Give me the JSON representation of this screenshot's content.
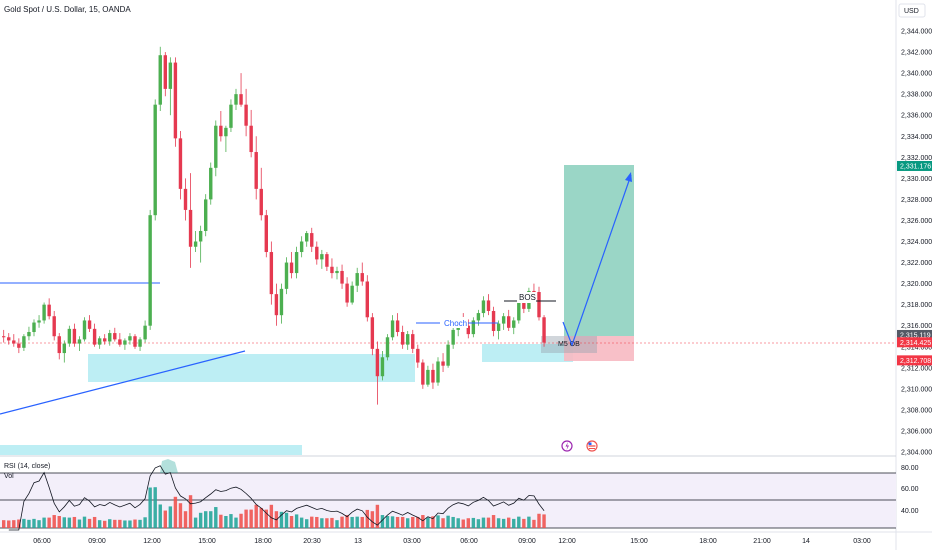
{
  "header": {
    "title": "Gold Spot / U.S. Dollar, 15, OANDA",
    "currency": "USD"
  },
  "colors": {
    "up": "#26a69a",
    "down": "#ef5350",
    "bull_candle": "#4caf50",
    "bear_candle": "#e53950",
    "zone": "#b2ebf2",
    "target": "#8fd2c0",
    "stop": "#f7b9c2",
    "line": "#2962ff",
    "rsi_band": "#f3effa",
    "grid": "#f0f3fa"
  },
  "price_axis": {
    "min": 2304,
    "max": 2345,
    "ticks": [
      "2,344.000",
      "2,342.000",
      "2,340.000",
      "2,338.000",
      "2,336.000",
      "2,334.000",
      "2,332.000",
      "2,330.000",
      "2,328.000",
      "2,326.000",
      "2,324.000",
      "2,322.000",
      "2,320.000",
      "2,318.000",
      "2,316.000",
      "2,314.000",
      "2,312.000",
      "2,310.000",
      "2,308.000",
      "2,306.000",
      "2,304.000"
    ]
  },
  "tags": [
    {
      "text": "2,331.176",
      "value": 2331.176,
      "color": "#089981"
    },
    {
      "text": "2,315.119",
      "value": 2315.119,
      "color": "#555a66"
    },
    {
      "text": "2,314.425",
      "value": 2314.425,
      "color": "#f23645"
    },
    {
      "text": "2,312.708",
      "value": 2312.708,
      "color": "#f23645"
    }
  ],
  "time_axis": [
    "06:00",
    "09:00",
    "12:00",
    "15:00",
    "18:00",
    "20:30",
    "13",
    "03:00",
    "06:00",
    "09:00",
    "12:00",
    "15:00",
    "18:00",
    "21:00",
    "14",
    "03:00"
  ],
  "annotations": {
    "choch": "Choch",
    "bos": "BOS",
    "ob": "M5 OB"
  },
  "rsi": {
    "label": "RSI (14, close)",
    "vol_label": "Vol",
    "ticks": [
      "80.00",
      "60.00",
      "40.00"
    ]
  },
  "chart_data": {
    "type": "candlestick",
    "title": "Gold Spot / U.S. Dollar, 15, OANDA",
    "ylim": [
      2304,
      2345
    ],
    "candles": [
      [
        2315.0,
        2315.6,
        2314.4,
        2314.9
      ],
      [
        2314.9,
        2315.3,
        2314.2,
        2314.6
      ],
      [
        2314.6,
        2315.2,
        2314.0,
        2314.3
      ],
      [
        2314.3,
        2314.8,
        2313.4,
        2313.9
      ],
      [
        2313.9,
        2315.2,
        2313.6,
        2315.0
      ],
      [
        2315.0,
        2315.9,
        2314.6,
        2315.4
      ],
      [
        2315.4,
        2316.6,
        2315.0,
        2316.3
      ],
      [
        2316.3,
        2317.0,
        2315.8,
        2316.5
      ],
      [
        2316.5,
        2318.2,
        2316.2,
        2318.0
      ],
      [
        2318.0,
        2318.6,
        2316.6,
        2316.9
      ],
      [
        2316.9,
        2317.4,
        2314.6,
        2315.0
      ],
      [
        2315.0,
        2315.3,
        2312.8,
        2313.4
      ],
      [
        2313.4,
        2314.6,
        2312.5,
        2314.3
      ],
      [
        2314.3,
        2316.0,
        2314.0,
        2315.7
      ],
      [
        2315.7,
        2316.2,
        2314.0,
        2314.3
      ],
      [
        2314.3,
        2315.0,
        2313.6,
        2314.7
      ],
      [
        2314.7,
        2316.8,
        2314.5,
        2316.5
      ],
      [
        2316.5,
        2317.0,
        2315.4,
        2315.7
      ],
      [
        2315.7,
        2316.2,
        2314.0,
        2314.2
      ],
      [
        2314.2,
        2315.0,
        2313.8,
        2314.8
      ],
      [
        2314.8,
        2315.2,
        2314.2,
        2314.5
      ],
      [
        2314.5,
        2315.6,
        2314.1,
        2315.3
      ],
      [
        2315.3,
        2315.8,
        2314.5,
        2314.7
      ],
      [
        2314.7,
        2315.3,
        2314.0,
        2314.2
      ],
      [
        2314.2,
        2314.8,
        2313.7,
        2314.6
      ],
      [
        2314.6,
        2315.3,
        2314.2,
        2315.0
      ],
      [
        2315.0,
        2315.2,
        2313.8,
        2314.0
      ],
      [
        2314.0,
        2314.9,
        2313.6,
        2314.7
      ],
      [
        2314.7,
        2316.5,
        2314.4,
        2316.0
      ],
      [
        2316.0,
        2327.0,
        2315.6,
        2326.5
      ],
      [
        2326.5,
        2337.5,
        2326.0,
        2337.0
      ],
      [
        2337.0,
        2342.5,
        2336.4,
        2341.7
      ],
      [
        2341.7,
        2342.0,
        2337.8,
        2338.5
      ],
      [
        2338.5,
        2341.5,
        2336.0,
        2341.0
      ],
      [
        2341.0,
        2341.5,
        2333.0,
        2333.8
      ],
      [
        2333.8,
        2334.5,
        2328.0,
        2329.0
      ],
      [
        2329.0,
        2330.0,
        2326.0,
        2327.0
      ],
      [
        2327.0,
        2330.5,
        2321.5,
        2323.5
      ],
      [
        2323.5,
        2325.0,
        2323.0,
        2324.0
      ],
      [
        2324.0,
        2325.5,
        2322.0,
        2325.0
      ],
      [
        2325.0,
        2328.5,
        2324.5,
        2328.0
      ],
      [
        2328.0,
        2331.5,
        2327.5,
        2331.0
      ],
      [
        2331.0,
        2335.5,
        2330.2,
        2335.0
      ],
      [
        2335.0,
        2336.4,
        2333.5,
        2334.0
      ],
      [
        2334.0,
        2335.0,
        2332.5,
        2334.8
      ],
      [
        2334.8,
        2337.5,
        2334.4,
        2337.0
      ],
      [
        2337.0,
        2338.5,
        2336.5,
        2338.0
      ],
      [
        2338.0,
        2340.0,
        2336.8,
        2337.0
      ],
      [
        2337.0,
        2338.5,
        2334.0,
        2335.0
      ],
      [
        2335.0,
        2336.5,
        2332.0,
        2332.5
      ],
      [
        2332.5,
        2334.0,
        2328.0,
        2329.0
      ],
      [
        2329.0,
        2331.0,
        2326.0,
        2326.5
      ],
      [
        2326.5,
        2327.0,
        2322.5,
        2323.0
      ],
      [
        2323.0,
        2324.0,
        2318.0,
        2319.0
      ],
      [
        2319.0,
        2320.0,
        2316.0,
        2317.0
      ],
      [
        2317.0,
        2320.0,
        2316.2,
        2319.5
      ],
      [
        2319.5,
        2322.5,
        2319.0,
        2322.0
      ],
      [
        2322.0,
        2323.0,
        2320.5,
        2321.0
      ],
      [
        2321.0,
        2323.5,
        2320.5,
        2323.0
      ],
      [
        2323.0,
        2324.5,
        2322.5,
        2324.0
      ],
      [
        2324.0,
        2325.0,
        2323.5,
        2324.8
      ],
      [
        2324.8,
        2325.3,
        2323.0,
        2323.5
      ],
      [
        2323.5,
        2324.0,
        2321.8,
        2322.3
      ],
      [
        2322.3,
        2323.2,
        2321.4,
        2322.8
      ],
      [
        2322.8,
        2323.0,
        2321.2,
        2321.6
      ],
      [
        2321.6,
        2322.4,
        2320.5,
        2321.0
      ],
      [
        2321.0,
        2321.6,
        2320.4,
        2321.2
      ],
      [
        2321.2,
        2321.8,
        2319.5,
        2320.0
      ],
      [
        2320.0,
        2320.6,
        2317.8,
        2318.2
      ],
      [
        2318.2,
        2320.2,
        2318.0,
        2319.8
      ],
      [
        2319.8,
        2321.5,
        2319.2,
        2321.0
      ],
      [
        2321.0,
        2322.0,
        2319.8,
        2320.2
      ],
      [
        2320.2,
        2320.8,
        2316.4,
        2316.8
      ],
      [
        2316.8,
        2317.2,
        2313.2,
        2313.8
      ],
      [
        2313.8,
        2314.5,
        2308.5,
        2311.2
      ],
      [
        2311.2,
        2313.6,
        2310.8,
        2313.0
      ],
      [
        2313.0,
        2315.2,
        2312.7,
        2314.9
      ],
      [
        2314.9,
        2317.0,
        2314.6,
        2316.5
      ],
      [
        2316.5,
        2317.2,
        2315.0,
        2315.4
      ],
      [
        2315.4,
        2316.0,
        2313.8,
        2314.2
      ],
      [
        2314.2,
        2315.5,
        2313.7,
        2315.2
      ],
      [
        2315.2,
        2315.6,
        2313.4,
        2313.8
      ],
      [
        2313.8,
        2314.2,
        2312.0,
        2312.5
      ],
      [
        2312.5,
        2312.8,
        2310.0,
        2310.4
      ],
      [
        2310.4,
        2312.2,
        2310.2,
        2311.8
      ],
      [
        2311.8,
        2312.4,
        2310.0,
        2310.6
      ],
      [
        2310.6,
        2313.0,
        2310.3,
        2312.6
      ],
      [
        2312.6,
        2313.4,
        2311.6,
        2312.2
      ],
      [
        2312.2,
        2314.6,
        2312.0,
        2314.2
      ],
      [
        2314.2,
        2316.0,
        2313.8,
        2315.6
      ],
      [
        2315.6,
        2316.8,
        2315.0,
        2316.4
      ],
      [
        2316.4,
        2317.2,
        2315.8,
        2316.0
      ],
      [
        2316.0,
        2316.6,
        2314.8,
        2315.2
      ],
      [
        2315.2,
        2316.8,
        2314.9,
        2316.5
      ],
      [
        2316.5,
        2317.5,
        2316.0,
        2317.2
      ],
      [
        2317.2,
        2318.8,
        2316.8,
        2318.4
      ],
      [
        2318.4,
        2319.0,
        2317.0,
        2317.4
      ],
      [
        2317.4,
        2317.8,
        2315.0,
        2315.5
      ],
      [
        2315.5,
        2316.5,
        2314.7,
        2316.2
      ],
      [
        2316.2,
        2317.2,
        2315.6,
        2316.9
      ],
      [
        2316.9,
        2317.5,
        2315.5,
        2315.8
      ],
      [
        2315.8,
        2316.8,
        2315.2,
        2316.5
      ],
      [
        2316.5,
        2318.5,
        2316.2,
        2318.2
      ],
      [
        2318.2,
        2318.8,
        2317.2,
        2317.6
      ],
      [
        2317.6,
        2319.6,
        2317.3,
        2319.3
      ],
      [
        2319.3,
        2320.0,
        2318.7,
        2319.2
      ],
      [
        2319.2,
        2319.7,
        2316.5,
        2316.8
      ],
      [
        2316.8,
        2317.0,
        2314.0,
        2314.4
      ]
    ],
    "annotations": [
      "Choch",
      "BOS",
      "M5 OB"
    ]
  }
}
